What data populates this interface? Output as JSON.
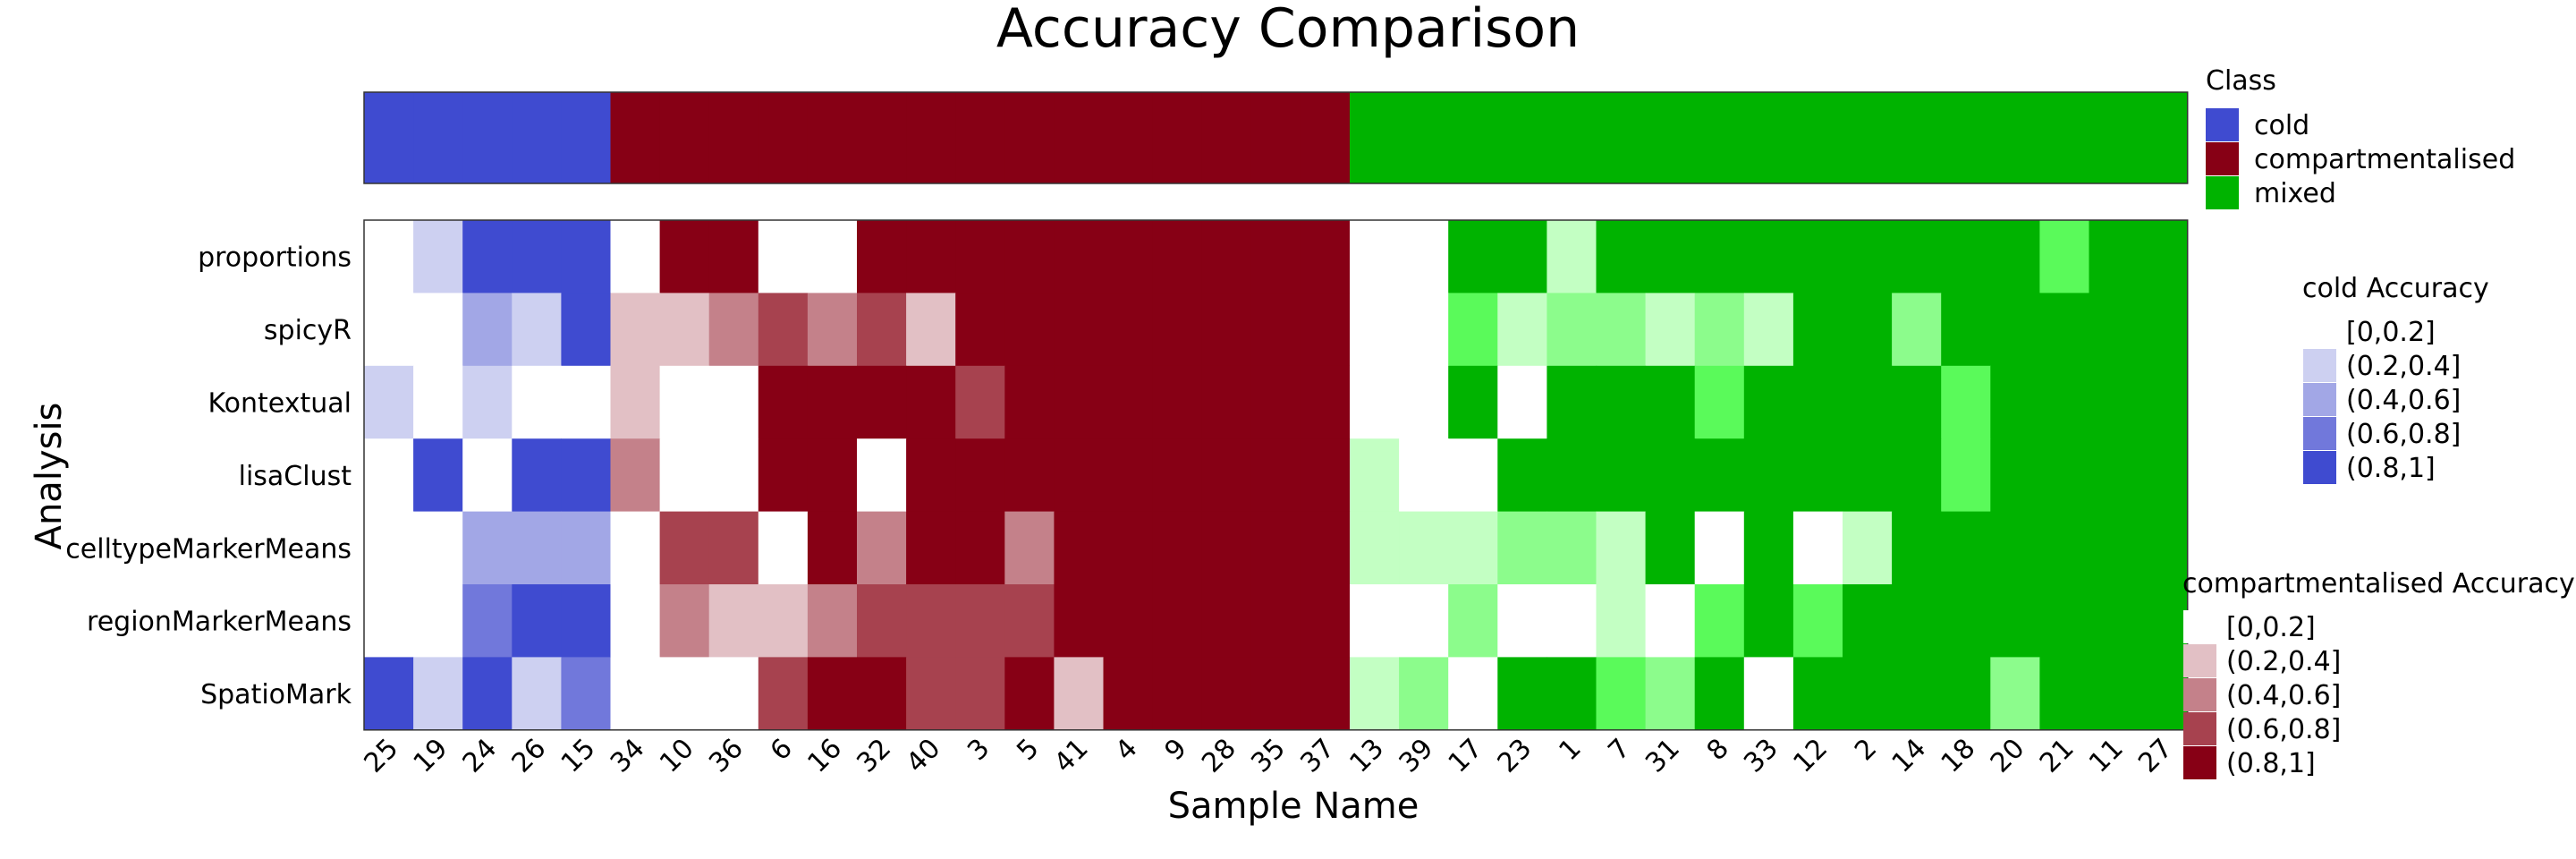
{
  "chart_data": {
    "type": "heatmap",
    "title": "Accuracy Comparison",
    "xlabel": "Sample Name",
    "ylabel": "Analysis",
    "samples": [
      "25",
      "19",
      "24",
      "26",
      "15",
      "34",
      "10",
      "36",
      "6",
      "16",
      "32",
      "40",
      "3",
      "5",
      "41",
      "4",
      "9",
      "28",
      "35",
      "37",
      "13",
      "39",
      "17",
      "23",
      "1",
      "7",
      "31",
      "8",
      "33",
      "12",
      "2",
      "14",
      "18",
      "20",
      "21",
      "11",
      "27"
    ],
    "sample_class": [
      "cold",
      "cold",
      "cold",
      "cold",
      "cold",
      "compartmentalised",
      "compartmentalised",
      "compartmentalised",
      "compartmentalised",
      "compartmentalised",
      "compartmentalised",
      "compartmentalised",
      "compartmentalised",
      "compartmentalised",
      "compartmentalised",
      "compartmentalised",
      "compartmentalised",
      "compartmentalised",
      "compartmentalised",
      "compartmentalised",
      "mixed",
      "mixed",
      "mixed",
      "mixed",
      "mixed",
      "mixed",
      "mixed",
      "mixed",
      "mixed",
      "mixed",
      "mixed",
      "mixed",
      "mixed",
      "mixed",
      "mixed",
      "mixed",
      "mixed"
    ],
    "analyses": [
      "proportions",
      "spicyR",
      "Kontextual",
      "lisaClust",
      "celltypeMarkerMeans",
      "regionMarkerMeans",
      "SpatioMark"
    ],
    "accuracy_bins": [
      "[0,0.2]",
      "(0.2,0.4]",
      "(0.4,0.6]",
      "(0.6,0.8]",
      "(0.8,1]"
    ],
    "accuracy_bin_index": [
      [
        0,
        1,
        4,
        4,
        4,
        0,
        4,
        4,
        0,
        0,
        4,
        4,
        4,
        4,
        4,
        4,
        4,
        4,
        4,
        4,
        0,
        0,
        4,
        4,
        1,
        4,
        4,
        4,
        4,
        4,
        4,
        4,
        4,
        4,
        3,
        4,
        4
      ],
      [
        0,
        0,
        2,
        1,
        4,
        1,
        1,
        2,
        3,
        2,
        3,
        1,
        4,
        4,
        4,
        4,
        4,
        4,
        4,
        4,
        0,
        0,
        3,
        1,
        2,
        2,
        1,
        2,
        1,
        4,
        4,
        2,
        4,
        4,
        4,
        4,
        4
      ],
      [
        1,
        0,
        1,
        0,
        0,
        1,
        0,
        0,
        4,
        4,
        4,
        4,
        3,
        4,
        4,
        4,
        4,
        4,
        4,
        4,
        0,
        0,
        4,
        0,
        4,
        4,
        4,
        3,
        4,
        4,
        4,
        4,
        3,
        4,
        4,
        4,
        4
      ],
      [
        0,
        4,
        0,
        4,
        4,
        2,
        0,
        0,
        4,
        4,
        0,
        4,
        4,
        4,
        4,
        4,
        4,
        4,
        4,
        4,
        1,
        0,
        0,
        4,
        4,
        4,
        4,
        4,
        4,
        4,
        4,
        4,
        3,
        4,
        4,
        4,
        4
      ],
      [
        0,
        0,
        2,
        2,
        2,
        0,
        3,
        3,
        0,
        4,
        2,
        4,
        4,
        2,
        4,
        4,
        4,
        4,
        4,
        4,
        1,
        1,
        1,
        2,
        2,
        1,
        4,
        0,
        4,
        0,
        1,
        4,
        4,
        4,
        4,
        4,
        4
      ],
      [
        0,
        0,
        3,
        4,
        4,
        0,
        2,
        1,
        1,
        2,
        3,
        3,
        3,
        3,
        4,
        4,
        4,
        4,
        4,
        4,
        0,
        0,
        2,
        0,
        0,
        1,
        0,
        3,
        4,
        3,
        4,
        4,
        4,
        4,
        4,
        4,
        4
      ],
      [
        4,
        1,
        4,
        1,
        3,
        0,
        0,
        0,
        3,
        4,
        4,
        3,
        3,
        4,
        1,
        4,
        4,
        4,
        4,
        4,
        1,
        2,
        0,
        4,
        4,
        3,
        2,
        4,
        0,
        4,
        4,
        4,
        4,
        2,
        4,
        4,
        4
      ]
    ],
    "class_legend": {
      "title": "Class",
      "entries": [
        "cold",
        "compartmentalised",
        "mixed"
      ],
      "colors": [
        "#3f4bd0",
        "#870015",
        "#00b300"
      ]
    },
    "cold_legend": {
      "title": "cold Accuracy",
      "colors": [
        "#ffffff",
        "#cdd0f1",
        "#a2a7e6",
        "#7178db",
        "#3f4bd0"
      ]
    },
    "compartmentalised_legend": {
      "title": "compartmentalised Accuracy",
      "colors": [
        "#ffffff",
        "#e2c0c5",
        "#c4818a",
        "#a7424f",
        "#870015"
      ]
    },
    "mixed_colors": [
      "#ffffff",
      "#c3ffc3",
      "#8cfc8c",
      "#5afa5a",
      "#00b300"
    ]
  }
}
